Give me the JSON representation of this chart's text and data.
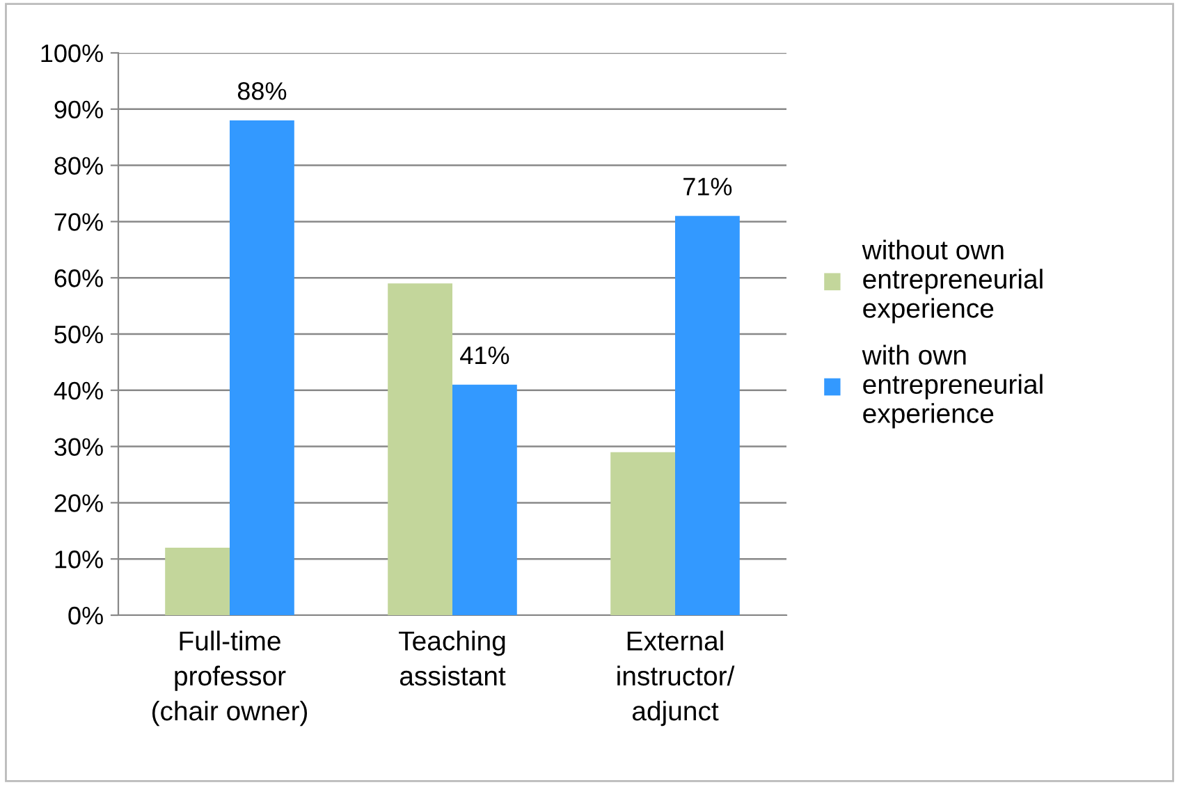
{
  "chart_data": {
    "type": "bar",
    "categories": [
      "Full-time\nprofessor\n(chair owner)",
      "Teaching\nassistant",
      "External\ninstructor/\nadjunct"
    ],
    "series": [
      {
        "name": "without own\nentrepreneurial\nexperience",
        "color": "#c3d69b",
        "values": [
          12,
          59,
          29
        ]
      },
      {
        "name": "with own\nentrepreneurial\nexperience",
        "color": "#3399ff",
        "values": [
          88,
          41,
          71
        ],
        "value_labels": [
          "88%",
          "41%",
          "71%"
        ]
      }
    ],
    "ylim": [
      0,
      100
    ],
    "yticks": [
      {
        "value": 0,
        "label": "0%"
      },
      {
        "value": 10,
        "label": "10%"
      },
      {
        "value": 20,
        "label": "20%"
      },
      {
        "value": 30,
        "label": "30%"
      },
      {
        "value": 40,
        "label": "40%"
      },
      {
        "value": 50,
        "label": "50%"
      },
      {
        "value": 60,
        "label": "60%"
      },
      {
        "value": 70,
        "label": "70%"
      },
      {
        "value": 80,
        "label": "80%"
      },
      {
        "value": 90,
        "label": "90%"
      },
      {
        "value": 100,
        "label": "100%"
      }
    ],
    "grid": "y",
    "legend": "right"
  }
}
